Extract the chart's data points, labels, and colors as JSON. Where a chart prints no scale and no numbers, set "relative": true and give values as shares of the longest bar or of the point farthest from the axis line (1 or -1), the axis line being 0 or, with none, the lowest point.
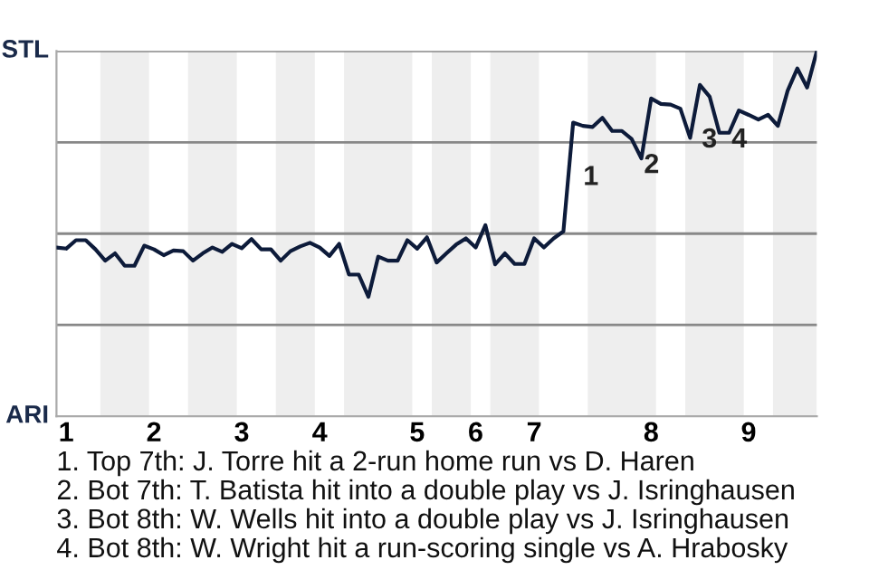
{
  "chart_data": {
    "type": "line",
    "relative": true,
    "categories": [
      null,
      "1",
      null,
      null,
      null,
      null,
      null,
      null,
      null,
      null,
      "2",
      null,
      null,
      null,
      null,
      null,
      null,
      null,
      null,
      "3",
      null,
      null,
      null,
      null,
      null,
      null,
      null,
      "4",
      null,
      null,
      null,
      null,
      null,
      null,
      null,
      null,
      null,
      "5",
      null,
      null,
      null,
      null,
      null,
      "6",
      null,
      null,
      null,
      null,
      null,
      "7",
      null,
      null,
      null,
      null,
      null,
      null,
      null,
      null,
      null,
      null,
      null,
      "8",
      null,
      null,
      null,
      null,
      null,
      null,
      null,
      null,
      null,
      "9",
      null,
      null,
      null,
      null,
      null,
      null,
      null
    ],
    "series": [
      {
        "color": "#0d1b3a",
        "values": [
          0.462,
          0.459,
          0.482,
          0.482,
          0.457,
          0.426,
          0.446,
          0.412,
          0.412,
          0.467,
          0.457,
          0.441,
          0.454,
          0.452,
          0.426,
          0.446,
          0.462,
          0.45,
          0.472,
          0.46,
          0.485,
          0.457,
          0.457,
          0.426,
          0.452,
          0.465,
          0.475,
          0.462,
          0.439,
          0.472,
          0.388,
          0.388,
          0.327,
          0.437,
          0.426,
          0.426,
          0.482,
          0.459,
          0.49,
          0.421,
          0.446,
          0.47,
          0.487,
          0.462,
          0.523,
          0.416,
          0.446,
          0.417,
          0.417,
          0.487,
          0.462,
          0.487,
          0.506,
          0.804,
          0.795,
          0.792,
          0.817,
          0.781,
          0.781,
          0.759,
          0.706,
          0.87,
          0.855,
          0.853,
          0.842,
          0.762,
          0.907,
          0.875,
          0.776,
          0.776,
          0.837,
          0.825,
          0.812,
          0.825,
          0.795,
          0.891,
          0.952,
          0.9,
          1
        ]
      }
    ],
    "grid": "y",
    "legend": false,
    "marker": "none",
    "line_style": "solid",
    "annotations": [
      "STL",
      "ARI",
      {
        "text": "1",
        "y": 0.804
      },
      {
        "text": "2",
        "y": 0.706
      },
      {
        "text": "3",
        "y": 0.776
      },
      {
        "text": "4",
        "y": 0.776
      },
      "1. Top 7th: J. Torre hit a 2-run home run vs D. Haren",
      "2. Bot 7th: T. Batista hit into a double play vs J. Isringhausen",
      "3. Bot 8th: W. Wells hit into a double play vs J. Isringhausen",
      "4. Bot 8th: W. Wright hit a run-scoring single vs A. Hrabosky"
    ]
  }
}
